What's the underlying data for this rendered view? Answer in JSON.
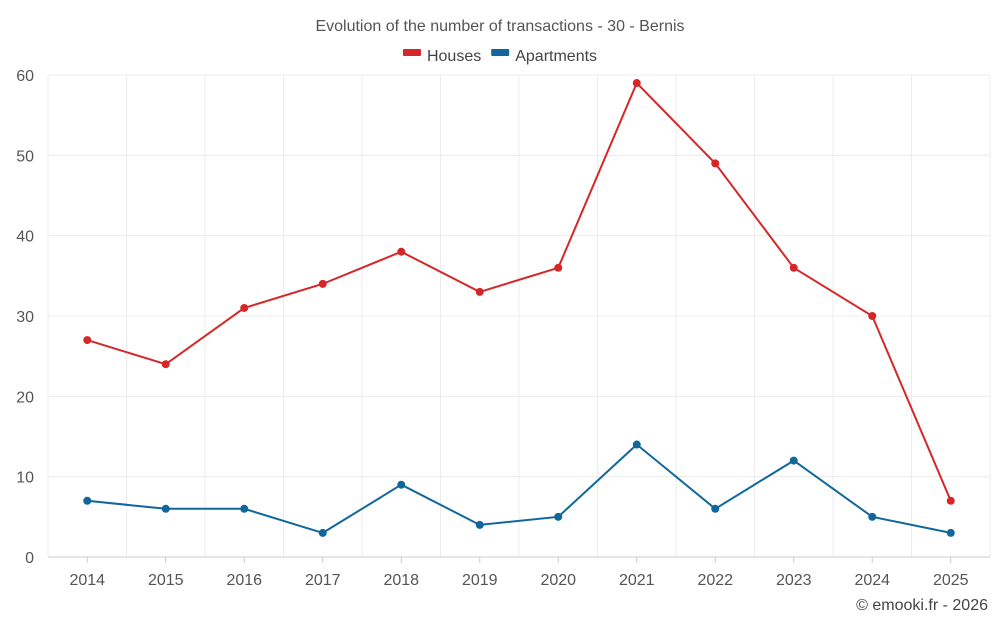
{
  "chart_data": {
    "type": "line",
    "title": "Evolution of the number of transactions - 30 - Bernis",
    "categories": [
      "2014",
      "2015",
      "2016",
      "2017",
      "2018",
      "2019",
      "2020",
      "2021",
      "2022",
      "2023",
      "2024",
      "2025"
    ],
    "series": [
      {
        "name": "Houses",
        "color": "#d62728",
        "values": [
          27,
          24,
          31,
          34,
          38,
          33,
          36,
          59,
          49,
          36,
          30,
          7
        ]
      },
      {
        "name": "Apartments",
        "color": "#10679b",
        "values": [
          7,
          6,
          6,
          3,
          9,
          4,
          5,
          14,
          6,
          12,
          5,
          3
        ]
      }
    ],
    "xlabel": "",
    "ylabel": "",
    "ylim": [
      0,
      60
    ],
    "yticks": [
      0,
      10,
      20,
      30,
      40,
      50,
      60
    ],
    "grid": true,
    "legend_position": "top-center"
  },
  "credit": "© emooki.fr - 2026"
}
